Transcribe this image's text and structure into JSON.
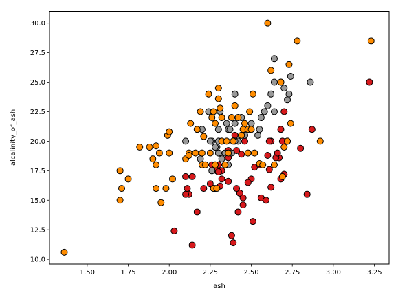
{
  "chart_data": {
    "type": "scatter",
    "title": "",
    "xlabel": "ash",
    "ylabel": "alcalinity_of_ash",
    "xlim": [
      1.27,
      3.34
    ],
    "ylim": [
      9.6,
      31.0
    ],
    "grid": false,
    "legend": "none",
    "x_ticks": [
      1.5,
      1.75,
      2.0,
      2.25,
      2.5,
      2.75,
      3.0,
      3.25
    ],
    "x_tick_labels": [
      "1.50",
      "1.75",
      "2.00",
      "2.25",
      "2.50",
      "2.75",
      "3.00",
      "3.25"
    ],
    "y_ticks": [
      10.0,
      12.5,
      15.0,
      17.5,
      20.0,
      22.5,
      25.0,
      27.5,
      30.0
    ],
    "y_tick_labels": [
      "10.0",
      "12.5",
      "15.0",
      "17.5",
      "20.0",
      "22.5",
      "25.0",
      "27.5",
      "30.0"
    ],
    "marker_edge_color": "#000000",
    "series": [
      {
        "color": "#d7191c",
        "points": [
          [
            2.43,
            15.6
          ],
          [
            2.14,
            11.2
          ],
          [
            2.67,
            18.6
          ],
          [
            2.5,
            16.8
          ],
          [
            2.87,
            21.0
          ],
          [
            2.45,
            15.2
          ],
          [
            2.45,
            14.6
          ],
          [
            2.61,
            17.6
          ],
          [
            2.17,
            14.0
          ],
          [
            2.27,
            16.0
          ],
          [
            2.3,
            18.0
          ],
          [
            2.32,
            16.8
          ],
          [
            2.41,
            16.0
          ],
          [
            2.39,
            11.4
          ],
          [
            2.38,
            12.0
          ],
          [
            2.7,
            17.2
          ],
          [
            2.72,
            20.0
          ],
          [
            2.62,
            20.0
          ],
          [
            2.48,
            16.5
          ],
          [
            2.56,
            15.2
          ],
          [
            2.28,
            16.0
          ],
          [
            2.65,
            18.6
          ],
          [
            2.36,
            16.6
          ],
          [
            2.52,
            17.8
          ],
          [
            2.61,
            20.0
          ],
          [
            3.22,
            25.0
          ],
          [
            2.62,
            16.1
          ],
          [
            2.14,
            17.0
          ],
          [
            2.8,
            19.4
          ],
          [
            2.21,
            16.0
          ],
          [
            2.7,
            22.5
          ],
          [
            2.36,
            18.6
          ],
          [
            2.68,
            21.0
          ],
          [
            2.41,
            19.2
          ],
          [
            2.69,
            20.0
          ],
          [
            2.84,
            15.5
          ],
          [
            2.55,
            18.0
          ],
          [
            2.1,
            17.0
          ],
          [
            2.51,
            13.2
          ],
          [
            2.31,
            16.2
          ],
          [
            2.12,
            15.5
          ],
          [
            2.59,
            15.0
          ],
          [
            2.29,
            17.5
          ],
          [
            2.1,
            15.5
          ],
          [
            2.44,
            18.9
          ],
          [
            2.25,
            16.4
          ],
          [
            2.68,
            16.8
          ],
          [
            2.46,
            20.0
          ],
          [
            2.32,
            17.5
          ],
          [
            2.26,
            18.0
          ],
          [
            2.6,
            18.8
          ],
          [
            2.42,
            14.0
          ],
          [
            2.4,
            20.5
          ],
          [
            2.03,
            12.4
          ],
          [
            2.36,
            19.2
          ],
          [
            2.66,
            19.0
          ],
          [
            2.3,
            17.4
          ],
          [
            2.11,
            16.0
          ]
        ]
      },
      {
        "color": "#999999",
        "points": [
          [
            2.36,
            21.0
          ],
          [
            2.26,
            20.0
          ],
          [
            2.38,
            19.0
          ],
          [
            2.3,
            19.0
          ],
          [
            2.1,
            20.0
          ],
          [
            2.4,
            24.0
          ],
          [
            2.31,
            22.5
          ],
          [
            2.4,
            21.5
          ],
          [
            2.62,
            24.0
          ],
          [
            2.36,
            18.0
          ],
          [
            2.68,
            25.0
          ],
          [
            2.28,
            19.5
          ],
          [
            2.32,
            20.0
          ],
          [
            2.2,
            21.0
          ],
          [
            2.56,
            22.0
          ],
          [
            2.74,
            25.5
          ],
          [
            2.64,
            27.0
          ],
          [
            2.73,
            24.0
          ],
          [
            2.24,
            22.5
          ],
          [
            2.72,
            23.5
          ],
          [
            2.28,
            18.0
          ],
          [
            2.55,
            21.0
          ],
          [
            2.42,
            20.0
          ],
          [
            2.35,
            21.5
          ],
          [
            2.7,
            24.5
          ],
          [
            2.86,
            25.0
          ],
          [
            2.64,
            25.0
          ],
          [
            2.29,
            19.5
          ],
          [
            2.19,
            18.5
          ],
          [
            2.54,
            20.5
          ],
          [
            2.58,
            22.5
          ],
          [
            2.5,
            21.5
          ],
          [
            2.26,
            17.5
          ],
          [
            2.3,
            20.0
          ],
          [
            2.25,
            20.0
          ],
          [
            2.32,
            18.5
          ],
          [
            2.4,
            20.0
          ],
          [
            2.34,
            19.0
          ],
          [
            2.37,
            21.0
          ],
          [
            2.6,
            23.0
          ],
          [
            2.44,
            22.0
          ],
          [
            2.46,
            20.5
          ],
          [
            2.64,
            22.5
          ],
          [
            2.21,
            18.0
          ],
          [
            2.3,
            21.0
          ],
          [
            2.28,
            19.5
          ]
        ]
      },
      {
        "color": "#ff8c00",
        "points": [
          [
            1.36,
            10.6
          ],
          [
            1.7,
            15.0
          ],
          [
            1.71,
            16.0
          ],
          [
            1.7,
            17.5
          ],
          [
            1.75,
            16.8
          ],
          [
            1.82,
            19.5
          ],
          [
            1.88,
            19.5
          ],
          [
            1.9,
            18.5
          ],
          [
            1.92,
            18.0
          ],
          [
            1.92,
            19.6
          ],
          [
            1.92,
            16.0
          ],
          [
            1.94,
            19.0
          ],
          [
            1.95,
            14.8
          ],
          [
            1.98,
            16.0
          ],
          [
            1.99,
            20.5
          ],
          [
            2.0,
            20.8
          ],
          [
            2.0,
            19.0
          ],
          [
            2.02,
            16.8
          ],
          [
            2.1,
            18.5
          ],
          [
            2.12,
            19.0
          ],
          [
            2.12,
            18.8
          ],
          [
            2.13,
            21.5
          ],
          [
            2.16,
            19.0
          ],
          [
            2.17,
            21.0
          ],
          [
            2.19,
            22.5
          ],
          [
            2.2,
            19.0
          ],
          [
            2.2,
            18.0
          ],
          [
            2.21,
            20.4
          ],
          [
            2.22,
            18.0
          ],
          [
            2.24,
            24.0
          ],
          [
            2.25,
            19.0
          ],
          [
            2.26,
            22.0
          ],
          [
            2.27,
            16.0
          ],
          [
            2.27,
            22.5
          ],
          [
            2.28,
            18.0
          ],
          [
            2.28,
            21.5
          ],
          [
            2.29,
            16.0
          ],
          [
            2.3,
            24.5
          ],
          [
            2.3,
            23.6
          ],
          [
            2.31,
            22.8
          ],
          [
            2.32,
            20.0
          ],
          [
            2.32,
            22.0
          ],
          [
            2.34,
            18.0
          ],
          [
            2.35,
            20.0
          ],
          [
            2.36,
            19.0
          ],
          [
            2.38,
            22.0
          ],
          [
            2.39,
            20.0
          ],
          [
            2.4,
            23.0
          ],
          [
            2.42,
            22.0
          ],
          [
            2.44,
            20.5
          ],
          [
            2.45,
            21.0
          ],
          [
            2.46,
            21.5
          ],
          [
            2.48,
            19.0
          ],
          [
            2.48,
            21.0
          ],
          [
            2.49,
            22.5
          ],
          [
            2.5,
            21.0
          ],
          [
            2.51,
            24.0
          ],
          [
            2.52,
            19.0
          ],
          [
            2.55,
            18.1
          ],
          [
            2.57,
            18.0
          ],
          [
            2.6,
            30.0
          ],
          [
            2.62,
            26.0
          ],
          [
            2.64,
            18.0
          ],
          [
            2.68,
            25.0
          ],
          [
            2.69,
            17.0
          ],
          [
            2.7,
            19.5
          ],
          [
            2.72,
            20.0
          ],
          [
            2.73,
            26.5
          ],
          [
            2.74,
            21.5
          ],
          [
            2.78,
            28.5
          ],
          [
            2.92,
            20.0
          ],
          [
            3.23,
            28.5
          ]
        ]
      }
    ]
  }
}
